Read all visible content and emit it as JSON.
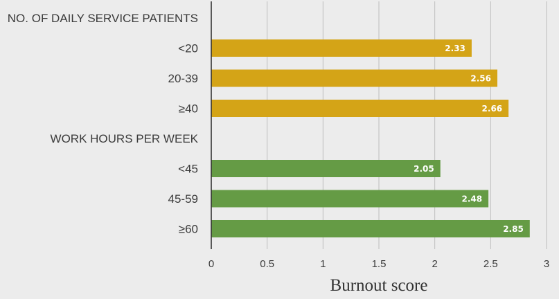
{
  "chart_data": {
    "type": "bar",
    "orientation": "horizontal",
    "rows": [
      {
        "label": "NO. OF DAILY SERVICE PATIENTS",
        "kind": "header"
      },
      {
        "label": "<20",
        "value": 2.33,
        "group": "patients"
      },
      {
        "label": "20-39",
        "value": 2.56,
        "group": "patients"
      },
      {
        "label": "≥40",
        "value": 2.66,
        "group": "patients"
      },
      {
        "label": "WORK HOURS PER WEEK",
        "kind": "header"
      },
      {
        "label": "<45",
        "value": 2.05,
        "group": "hours"
      },
      {
        "label": "45-59",
        "value": 2.48,
        "group": "hours"
      },
      {
        "label": "≥60",
        "value": 2.85,
        "group": "hours"
      }
    ],
    "value_labels": [
      "2.33",
      "2.56",
      "2.66",
      "2.05",
      "2.48",
      "2.85"
    ],
    "xlabel": "Burnout score",
    "xlim": [
      0,
      3
    ],
    "xticks": [
      "0",
      "0.5",
      "1",
      "1.5",
      "2",
      "2.5",
      "3"
    ],
    "grid": "vertical",
    "colors": {
      "patients": "#d4a417",
      "hours": "#659b45",
      "grid": "#bdbdbd",
      "axis": "#333333"
    }
  }
}
